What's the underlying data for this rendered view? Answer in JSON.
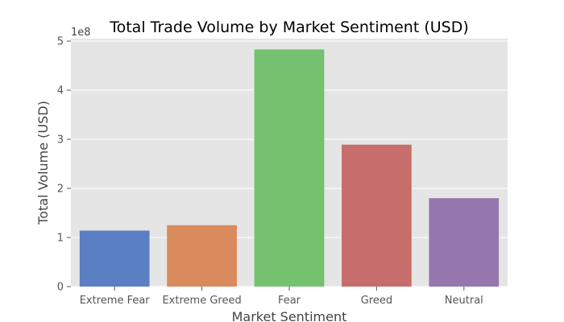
{
  "chart_data": {
    "type": "bar",
    "title": "Total Trade Volume by Market Sentiment (USD)",
    "xlabel": "Market Sentiment",
    "ylabel": "Total Volume (USD)",
    "y_scale_label": "1e8",
    "categories": [
      "Extreme Fear",
      "Extreme Greed",
      "Fear",
      "Greed",
      "Neutral"
    ],
    "values": [
      114000000,
      125000000,
      483000000,
      289000000,
      180000000
    ],
    "colors": [
      "#5a7fc3",
      "#d98b5d",
      "#74c170",
      "#c76d6c",
      "#9677ad"
    ],
    "ylim": [
      0,
      505000000
    ],
    "yticks": [
      0,
      1,
      2,
      3,
      4,
      5
    ],
    "grid": true,
    "background": "#e5e5e5"
  }
}
